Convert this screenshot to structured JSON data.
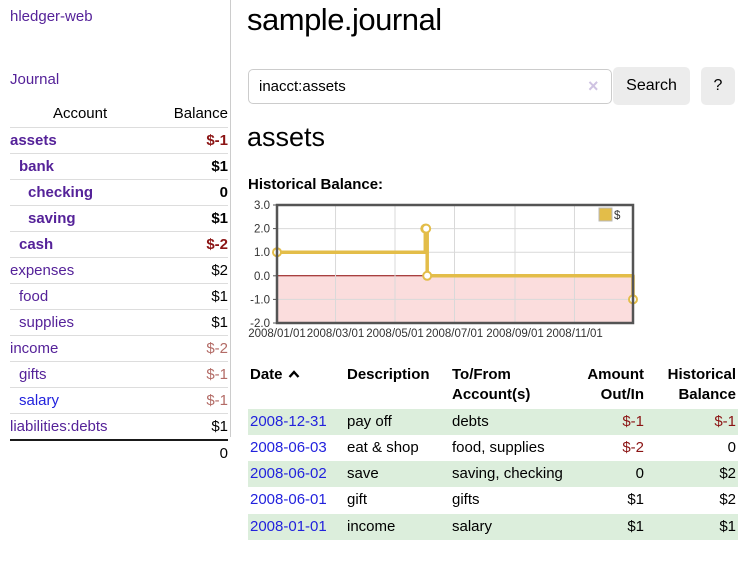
{
  "app": {
    "brand": "hledger-web",
    "nav_journal": "Journal"
  },
  "sidebar": {
    "header": {
      "account": "Account",
      "balance": "Balance"
    },
    "rows": [
      {
        "account": "assets",
        "balance": "$-1",
        "depth": 1,
        "bold": true,
        "link": "purple",
        "balance_class": "neg"
      },
      {
        "account": "bank",
        "balance": "$1",
        "depth": 2,
        "bold": true,
        "link": "purple",
        "balance_class": ""
      },
      {
        "account": "checking",
        "balance": "0",
        "depth": 3,
        "bold": true,
        "link": "purple",
        "balance_class": ""
      },
      {
        "account": "saving",
        "balance": "$1",
        "depth": 3,
        "bold": true,
        "link": "purple",
        "balance_class": ""
      },
      {
        "account": "cash",
        "balance": "$-2",
        "depth": 2,
        "bold": true,
        "link": "purple",
        "balance_class": "neg"
      },
      {
        "account": "expenses",
        "balance": "$2",
        "depth": 1,
        "bold": false,
        "link": "purple",
        "balance_class": ""
      },
      {
        "account": "food",
        "balance": "$1",
        "depth": 2,
        "bold": false,
        "link": "purple",
        "balance_class": ""
      },
      {
        "account": "supplies",
        "balance": "$1",
        "depth": 2,
        "bold": false,
        "link": "purple",
        "balance_class": ""
      },
      {
        "account": "income",
        "balance": "$-2",
        "depth": 1,
        "bold": false,
        "link": "purple",
        "balance_class": "neg-soft"
      },
      {
        "account": "gifts",
        "balance": "$-1",
        "depth": 2,
        "bold": false,
        "link": "purple",
        "balance_class": "neg-soft"
      },
      {
        "account": "salary",
        "balance": "$-1",
        "depth": 2,
        "bold": false,
        "link": "blue",
        "balance_class": "neg-soft"
      },
      {
        "account": "liabilities:debts",
        "balance": "$1",
        "depth": 1,
        "bold": false,
        "link": "purple",
        "balance_class": ""
      }
    ],
    "total": "0"
  },
  "main": {
    "title": "sample.journal",
    "search": {
      "value": "inacct:assets",
      "clear_icon": "×",
      "button": "Search",
      "help": "?"
    },
    "account_heading": "assets",
    "chart_label": "Historical Balance:"
  },
  "chart_data": {
    "type": "line",
    "title": "Historical Balance:",
    "step": true,
    "series": [
      {
        "name": "$",
        "points": [
          [
            "2008-01-01",
            1
          ],
          [
            "2008-06-01",
            2
          ],
          [
            "2008-06-02",
            2
          ],
          [
            "2008-06-03",
            0
          ],
          [
            "2008-12-31",
            -1
          ]
        ]
      }
    ],
    "x_domain": [
      "2008-01-01",
      "2008-12-31"
    ],
    "x_ticks": [
      "2008/01/01",
      "2008/03/01",
      "2008/05/01",
      "2008/07/01",
      "2008/09/01",
      "2008/11/01"
    ],
    "y_ticks": [
      3.0,
      2.0,
      1.0,
      0.0,
      -1.0,
      -2.0
    ],
    "ylim": [
      -2,
      3
    ],
    "grid": true,
    "legend_position": "top-right",
    "colors": {
      "line": "#e3bd49",
      "marker_fill": "#ffffff",
      "negative_region": "#fbdddd",
      "zero_line": "#8b0000",
      "grid": "#d9d9d9",
      "border": "#545454",
      "legend_border": "#b9b9b9"
    }
  },
  "register": {
    "headers": {
      "date": "Date",
      "description": "Description",
      "accounts": "To/From Account(s)",
      "amount": "Amount Out/In",
      "balance": "Historical Balance"
    },
    "rows": [
      {
        "date": "2008-12-31",
        "description": "pay off",
        "accounts": "debts",
        "amount": "$-1",
        "balance": "$-1"
      },
      {
        "date": "2008-06-03",
        "description": "eat & shop",
        "accounts": "food, supplies",
        "amount": "$-2",
        "balance": "0"
      },
      {
        "date": "2008-06-02",
        "description": "save",
        "accounts": "saving, checking",
        "amount": "0",
        "balance": "$2"
      },
      {
        "date": "2008-06-01",
        "description": "gift",
        "accounts": "gifts",
        "amount": "$1",
        "balance": "$2"
      },
      {
        "date": "2008-01-01",
        "description": "income",
        "accounts": "salary",
        "amount": "$1",
        "balance": "$1"
      }
    ]
  }
}
